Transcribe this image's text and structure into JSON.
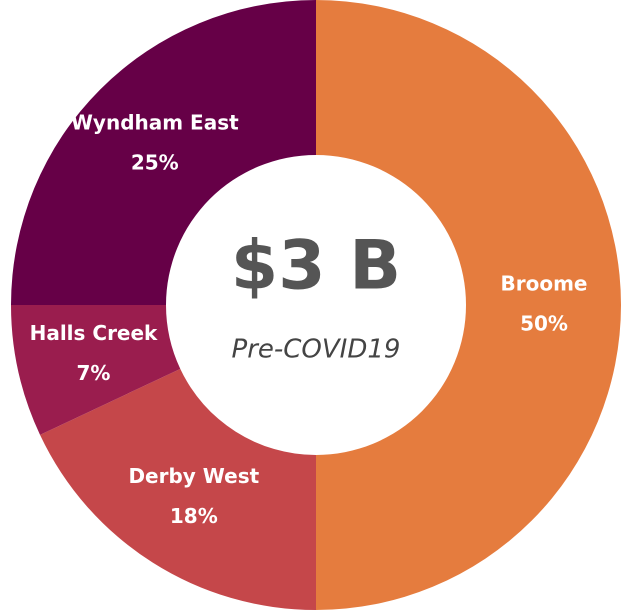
{
  "chart_data": {
    "type": "donut",
    "title": "$3 B",
    "subtitle": "Pre-COVID19",
    "categories": [
      "Broome",
      "Derby West",
      "Halls Creek",
      "Wyndham East"
    ],
    "values": [
      50,
      18,
      7,
      25
    ],
    "value_labels": [
      "50%",
      "18%",
      "7%",
      "25%"
    ],
    "colors": [
      "#e57c3e",
      "#c5474a",
      "#9a1d4e",
      "#660047"
    ]
  }
}
